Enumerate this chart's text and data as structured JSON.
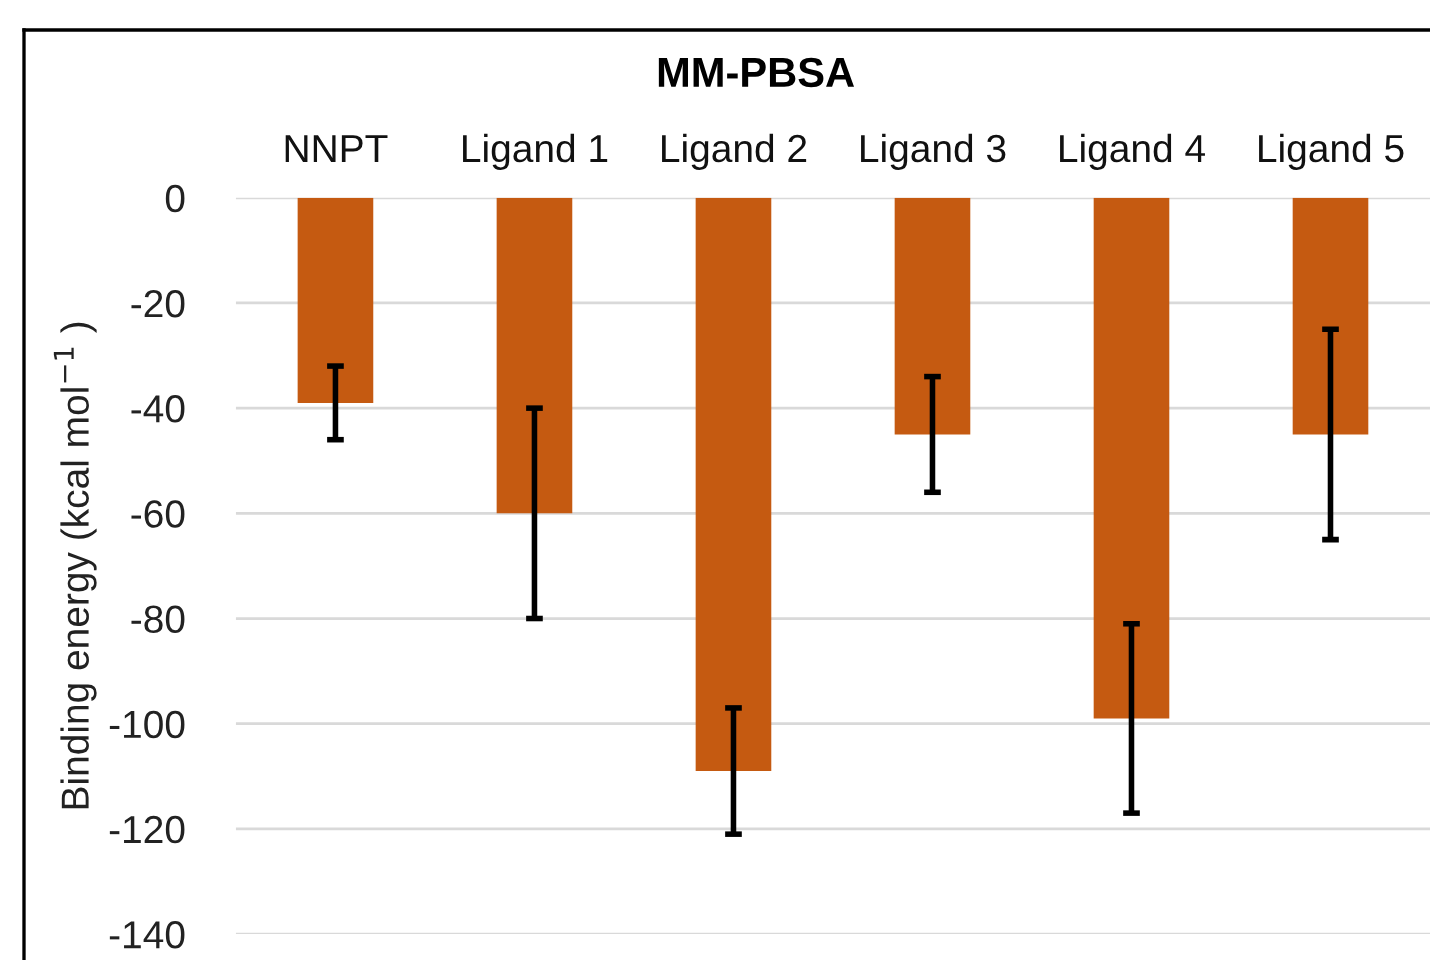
{
  "chart_data": {
    "type": "bar",
    "title": "MM-PBSA",
    "ylabel": "Binding energy (kcal mol$^{−1}$ )",
    "categories": [
      "NNPT",
      "Ligand 1",
      "Ligand 2",
      "Ligand 3",
      "Ligand 4",
      "Ligand 5"
    ],
    "values": [
      -39,
      -60,
      -109,
      -45,
      -99,
      -45
    ],
    "errors": [
      7,
      20,
      12,
      11,
      18,
      20
    ],
    "color": "#c55a11",
    "ylim": [
      -140,
      0
    ],
    "yticks": [
      0,
      -20,
      -40,
      -60,
      -80,
      -100,
      -120,
      -140
    ],
    "grid": "y"
  }
}
